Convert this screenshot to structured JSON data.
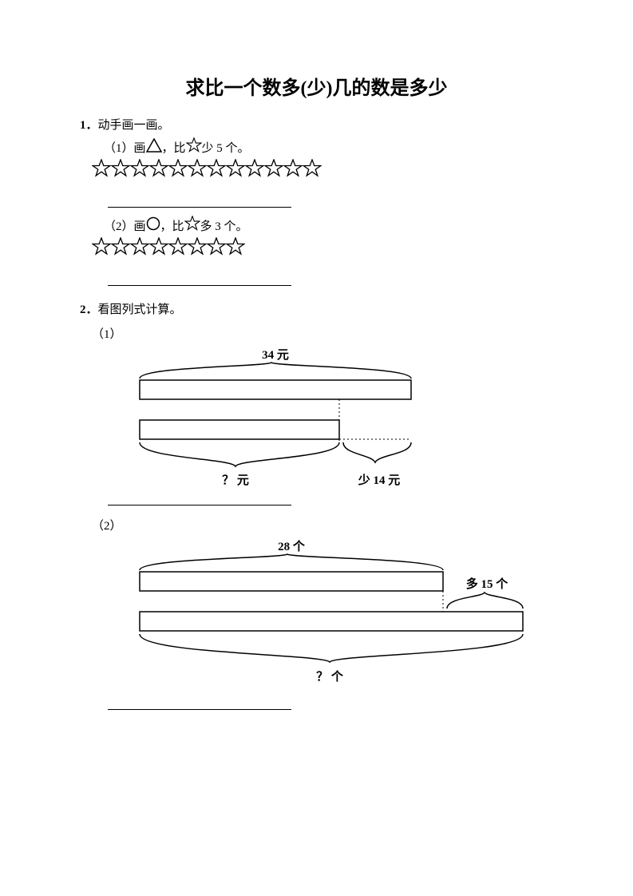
{
  "title": "求比一个数多(少)几的数是多少",
  "q1": {
    "number": "1．",
    "text": "动手画一画。",
    "p1": {
      "label": "（1）画",
      "mid": "，比",
      "tail": "少 5 个。",
      "star_count": 12
    },
    "p2": {
      "label": "（2）画",
      "mid": "，比",
      "tail": "多 3 个。",
      "star_count": 8
    }
  },
  "q2": {
    "number": "2．",
    "text": "看图列式计算。",
    "p1": {
      "label": "（1）",
      "top_label": "34 元",
      "q_label": "？ 元",
      "diff_label": "少 14 元"
    },
    "p2": {
      "label": "（2）",
      "top_label": "28 个",
      "diff_label": "多 15 个",
      "q_label": "？ 个"
    }
  },
  "colors": {
    "ink": "#000000",
    "bg": "#ffffff"
  }
}
